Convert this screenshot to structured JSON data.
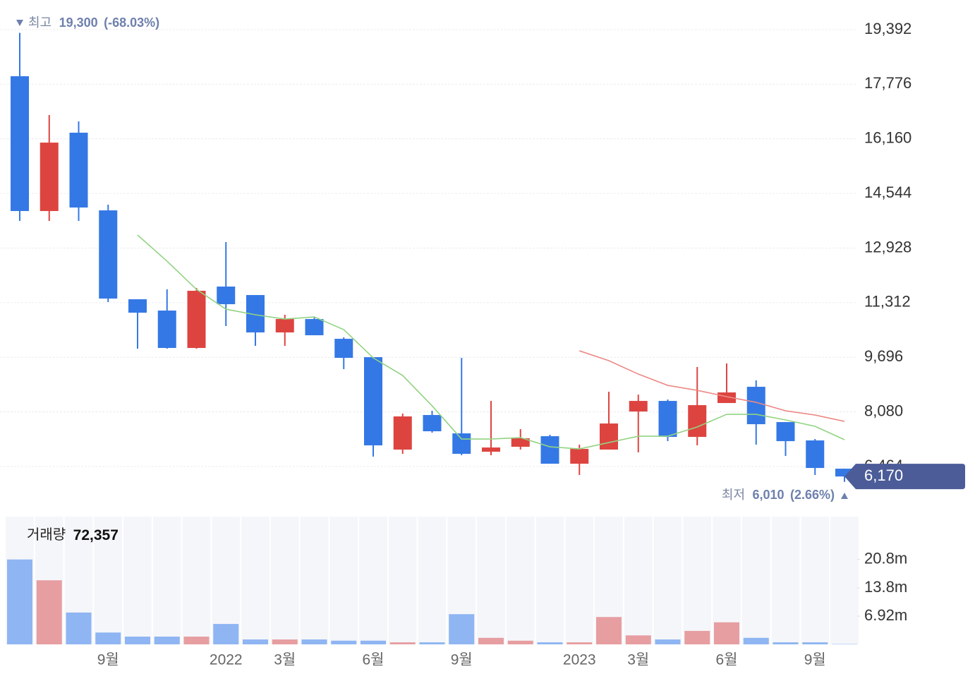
{
  "chart_data": {
    "type": "candlestick",
    "categories": [
      null,
      null,
      null,
      "9월",
      null,
      null,
      null,
      "2022",
      null,
      "3월",
      null,
      null,
      "6월",
      null,
      null,
      "9월",
      null,
      null,
      null,
      "2023",
      null,
      "3월",
      null,
      null,
      "6월",
      null,
      null,
      "9월",
      null
    ],
    "open": [
      18014,
      14025,
      16343,
      14045,
      11414,
      11080,
      9973,
      11790,
      11539,
      10433,
      10829,
      10244,
      9701,
      6966,
      7989,
      7446,
      6903,
      7049,
      7362,
      6548,
      6966,
      8093,
      8406,
      7341,
      8344,
      8824,
      7780,
      7237,
      6401
    ],
    "high": [
      19300,
      16865,
      16677,
      14213,
      11414,
      11706,
      11748,
      13106,
      11539,
      10955,
      10892,
      10286,
      9701,
      8031,
      8114,
      9680,
      8406,
      7571,
      7404,
      7112,
      8678,
      8594,
      8448,
      9409,
      9514,
      9012,
      7780,
      7279,
      6401
    ],
    "low": [
      13732,
      13732,
      13732,
      11331,
      9952,
      9952,
      9952,
      10620,
      10036,
      10036,
      10349,
      9346,
      6757,
      6840,
      7467,
      6799,
      6799,
      6966,
      6548,
      6214,
      6966,
      6882,
      7216,
      7091,
      8344,
      7112,
      6777,
      6214,
      6010
    ],
    "close": [
      14025,
      16050,
      14129,
      11435,
      11017,
      9973,
      11665,
      11268,
      10433,
      10829,
      10349,
      9680,
      7091,
      7947,
      7508,
      6840,
      7028,
      7300,
      6548,
      6986,
      7738,
      8406,
      7341,
      8281,
      8657,
      7717,
      7216,
      6422,
      6170
    ],
    "up_color": "#dd4440",
    "down_color": "#3478e5",
    "moving_averages": [
      {
        "color": "#92d382",
        "values": [
          null,
          null,
          null,
          null,
          13315,
          12542,
          11706,
          11121,
          10955,
          10829,
          10892,
          10516,
          9680,
          9158,
          8260,
          7279,
          7279,
          7321,
          7049,
          6986,
          7174,
          7362,
          7362,
          7634,
          8010,
          8010,
          7843,
          7655,
          7258
        ]
      },
      {
        "color": "#ec8a86",
        "values": [
          null,
          null,
          null,
          null,
          null,
          null,
          null,
          null,
          null,
          null,
          null,
          null,
          null,
          null,
          null,
          null,
          null,
          null,
          null,
          9889,
          9597,
          9200,
          8866,
          8720,
          8532,
          8365,
          8114,
          7989,
          7801
        ]
      }
    ],
    "ylim": [
      5400,
      19800
    ],
    "yticks": [
      {
        "value": 19392,
        "label": "19,392"
      },
      {
        "value": 17776,
        "label": "17,776"
      },
      {
        "value": 16160,
        "label": "16,160"
      },
      {
        "value": 14544,
        "label": "14,544"
      },
      {
        "value": 12928,
        "label": "12,928"
      },
      {
        "value": 11312,
        "label": "11,312"
      },
      {
        "value": 9696,
        "label": "9,696"
      },
      {
        "value": 8080,
        "label": "8,080"
      },
      {
        "value": 6464,
        "label": "6,464"
      }
    ],
    "grid": true,
    "high_marker": {
      "label": "최고",
      "value": 19300,
      "value_label": "19,300",
      "change": "(-68.03%)"
    },
    "low_marker": {
      "label": "최저",
      "value": 6010,
      "value_label": "6,010",
      "change": "(2.66%)"
    },
    "current": {
      "value": 6170,
      "label": "6,170"
    },
    "volume": {
      "label": "거래량",
      "values": [
        20800000,
        15700000,
        7800000,
        2900000,
        1900000,
        1900000,
        1900000,
        5000000,
        1200000,
        1200000,
        1200000,
        900000,
        900000,
        500000,
        500000,
        7400000,
        1600000,
        900000,
        500000,
        500000,
        6700000,
        2200000,
        1200000,
        3300000,
        5400000,
        1600000,
        500000,
        500000,
        72357
      ],
      "current_label": "72,357",
      "up_color": "#e69ea1",
      "down_color": "#8fb5f2",
      "ylim": [
        0,
        31300000
      ],
      "yticks": [
        {
          "value": 6920000,
          "label": "6.92m"
        },
        {
          "value": 13800000,
          "label": "13.8m"
        },
        {
          "value": 20800000,
          "label": "20.8m"
        }
      ]
    }
  }
}
